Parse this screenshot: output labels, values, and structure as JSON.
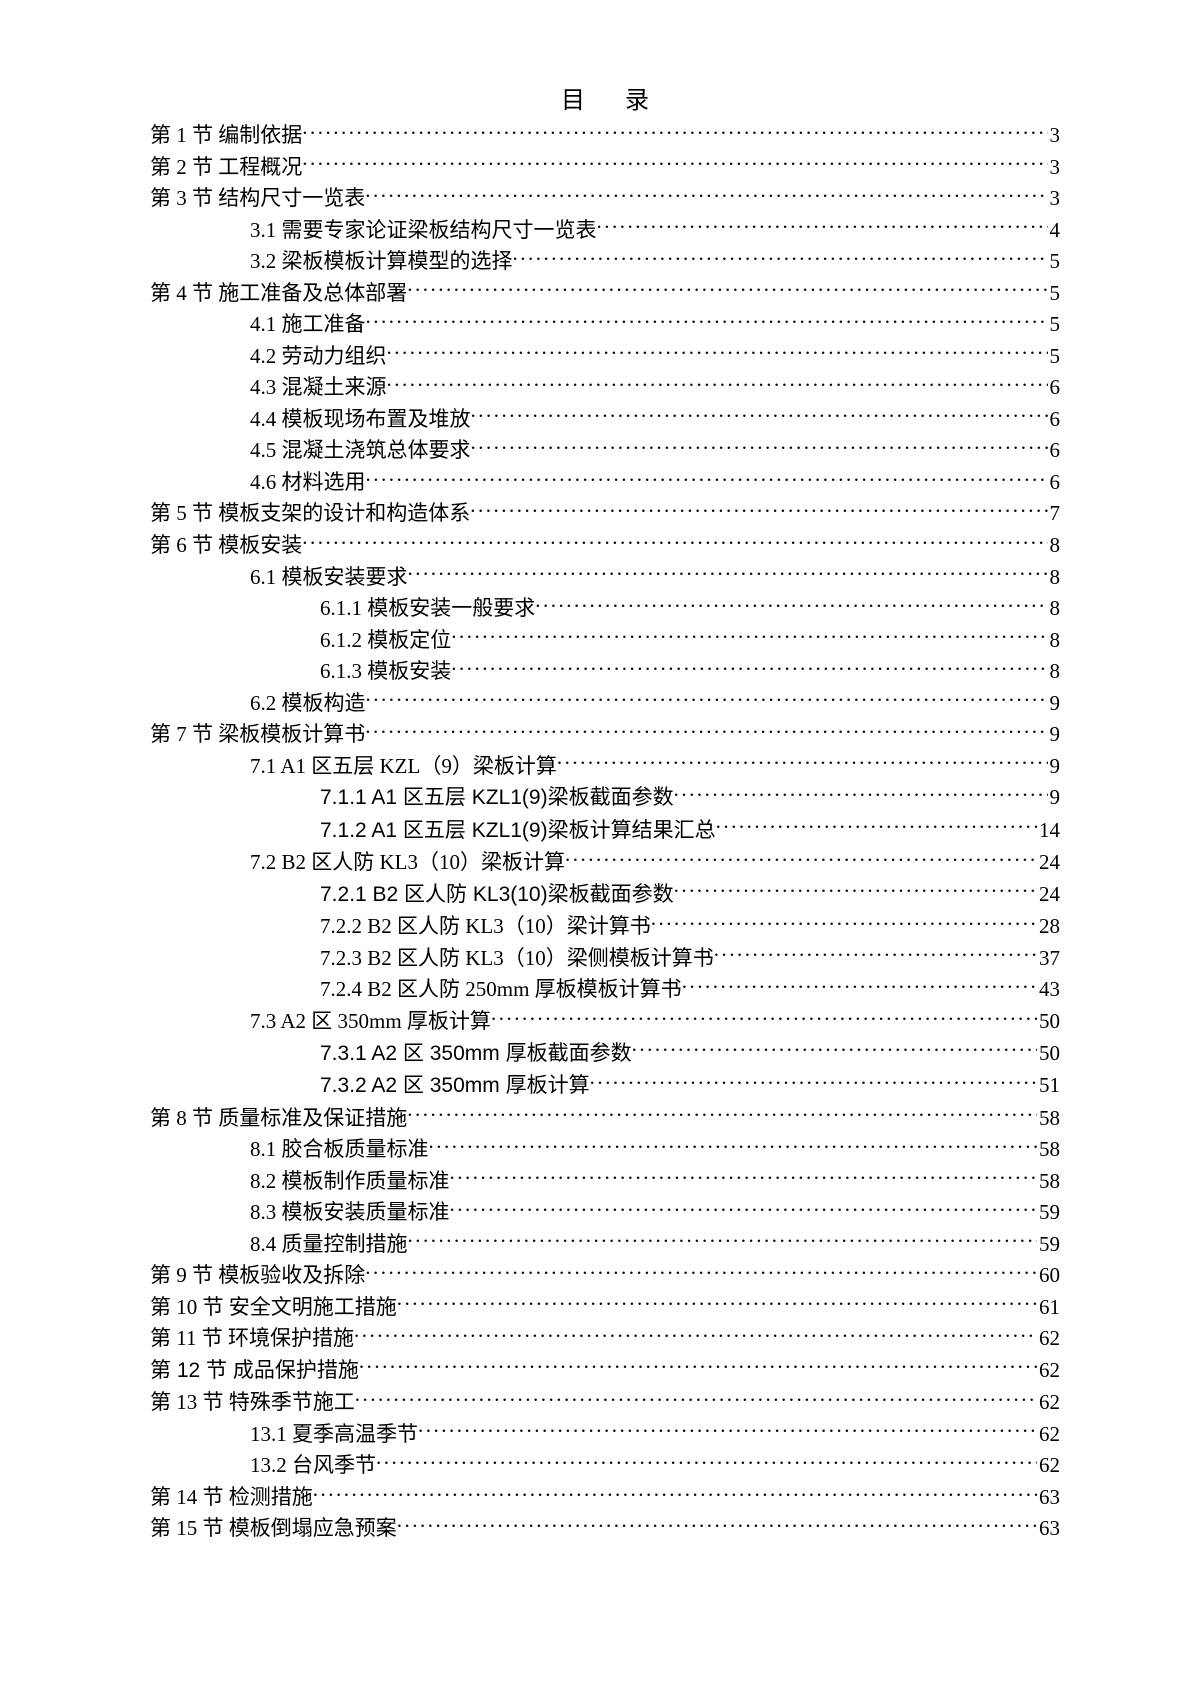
{
  "title": "目录",
  "entries": [
    {
      "level": 0,
      "label": "第 1 节 编制依据",
      "page": "3"
    },
    {
      "level": 0,
      "label": "第 2 节 工程概况",
      "page": "3"
    },
    {
      "level": 0,
      "label": "第 3 节 结构尺寸一览表",
      "page": "3"
    },
    {
      "level": 1,
      "label": "3.1 需要专家论证梁板结构尺寸一览表",
      "page": "4"
    },
    {
      "level": 1,
      "label": "3.2 梁板模板计算模型的选择",
      "page": "5"
    },
    {
      "level": 0,
      "label": "第 4 节 施工准备及总体部署",
      "page": "5"
    },
    {
      "level": 1,
      "label": "4.1 施工准备",
      "page": "5"
    },
    {
      "level": 1,
      "label": "4.2 劳动力组织",
      "page": "5"
    },
    {
      "level": 1,
      "label": "4.3 混凝土来源",
      "page": "6"
    },
    {
      "level": 1,
      "label": "4.4 模板现场布置及堆放",
      "page": "6"
    },
    {
      "level": 1,
      "label": "4.5 混凝土浇筑总体要求",
      "page": "6"
    },
    {
      "level": 1,
      "label": "4.6 材料选用",
      "page": "6"
    },
    {
      "level": 0,
      "label": "第 5 节 模板支架的设计和构造体系",
      "page": "7"
    },
    {
      "level": 0,
      "label": "第 6 节 模板安装",
      "page": "8"
    },
    {
      "level": 1,
      "label": "6.1 模板安装要求",
      "page": "8"
    },
    {
      "level": 2,
      "label": "6.1.1 模板安装一般要求",
      "page": "8"
    },
    {
      "level": 2,
      "label": "6.1.2 模板定位",
      "page": "8"
    },
    {
      "level": 2,
      "label": "6.1.3 模板安装",
      "page": "8"
    },
    {
      "level": 1,
      "label": "6.2 模板构造",
      "page": "9"
    },
    {
      "level": 0,
      "label": "第 7 节 梁板模板计算书",
      "page": "9"
    },
    {
      "level": 1,
      "label": "7.1 A1 区五层 KZL（9）梁板计算",
      "page": "9"
    },
    {
      "level": 2,
      "label": "7.1.1 A1 区五层 KZL1(9)梁板截面参数",
      "page": "9",
      "bold": true
    },
    {
      "level": 2,
      "label": "7.1.2 A1 区五层 KZL1(9)梁板计算结果汇总",
      "page": "14",
      "bold": true
    },
    {
      "level": 1,
      "label": "7.2 B2 区人防 KL3（10）梁板计算",
      "page": "24"
    },
    {
      "level": 2,
      "label": "7.2.1 B2 区人防 KL3(10)梁板截面参数",
      "page": "24",
      "bold": true
    },
    {
      "level": 2,
      "label": "7.2.2 B2 区人防 KL3（10）梁计算书",
      "page": "28"
    },
    {
      "level": 2,
      "label": "7.2.3 B2 区人防 KL3（10）梁侧模板计算书",
      "page": "37"
    },
    {
      "level": 2,
      "label": "7.2.4 B2 区人防 250mm 厚板模板计算书",
      "page": "43"
    },
    {
      "level": 1,
      "label": "7.3 A2 区 350mm 厚板计算",
      "page": "50"
    },
    {
      "level": 2,
      "label": "7.3.1 A2 区 350mm 厚板截面参数",
      "page": "50",
      "bold": true
    },
    {
      "level": 2,
      "label": "7.3.2 A2 区 350mm 厚板计算",
      "page": "51",
      "bold": true
    },
    {
      "level": 0,
      "label": "第 8 节 质量标准及保证措施",
      "page": "58"
    },
    {
      "level": 1,
      "label": "8.1 胶合板质量标准",
      "page": "58"
    },
    {
      "level": 1,
      "label": "8.2 模板制作质量标准",
      "page": "58"
    },
    {
      "level": 1,
      "label": "8.3 模板安装质量标准",
      "page": "59"
    },
    {
      "level": 1,
      "label": "8.4 质量控制措施",
      "page": "59"
    },
    {
      "level": 0,
      "label": "第 9 节 模板验收及拆除",
      "page": "60"
    },
    {
      "level": 0,
      "label": "第 10 节 安全文明施工措施",
      "page": "61"
    },
    {
      "level": 0,
      "label": "第 11 节 环境保护措施",
      "page": "62"
    },
    {
      "level": 0,
      "label": "第 12 节 成品保护措施",
      "page": "62",
      "bold": true
    },
    {
      "level": 0,
      "label": "第 13 节 特殊季节施工",
      "page": "62"
    },
    {
      "level": 1,
      "label": "13.1 夏季高温季节",
      "page": "62"
    },
    {
      "level": 1,
      "label": "13.2 台风季节",
      "page": "62"
    },
    {
      "level": 0,
      "label": "第 14 节 检测措施",
      "page": "63"
    },
    {
      "level": 0,
      "label": "第 15 节 模板倒塌应急预案",
      "page": "63"
    }
  ]
}
